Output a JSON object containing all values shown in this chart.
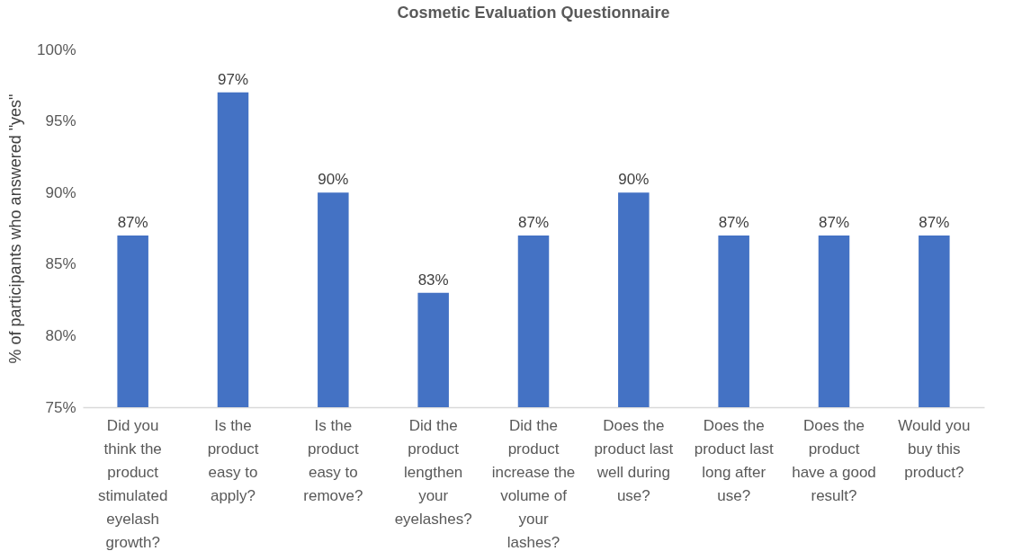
{
  "chart_data": {
    "type": "bar",
    "title": "Cosmetic Evaluation Questionnaire",
    "ylabel": "% of participants who answered  \"yes\"",
    "categories": [
      "Did you think the product stimulated eyelash growth?",
      "Is the product easy to apply?",
      "Is the product easy to remove?",
      "Did the product lengthen your eyelashes?",
      "Did the product increase the volume of your lashes?",
      "Does the product last well during use?",
      "Does the product last long after use?",
      "Does the product have a good result?",
      "Would you buy this product?"
    ],
    "values": [
      87,
      97,
      90,
      83,
      87,
      90,
      87,
      87,
      87
    ],
    "value_labels": [
      "87%",
      "97%",
      "90%",
      "83%",
      "87%",
      "90%",
      "87%",
      "87%",
      "87%"
    ],
    "color": "#4472c4",
    "ylim": [
      75,
      100
    ],
    "yticks": [
      {
        "value": 75,
        "label": "75%"
      },
      {
        "value": 80,
        "label": "80%"
      },
      {
        "value": 85,
        "label": "85%"
      },
      {
        "value": 90,
        "label": "90%"
      },
      {
        "value": 95,
        "label": "95%"
      },
      {
        "value": 100,
        "label": "100%"
      }
    ],
    "grid": false
  }
}
